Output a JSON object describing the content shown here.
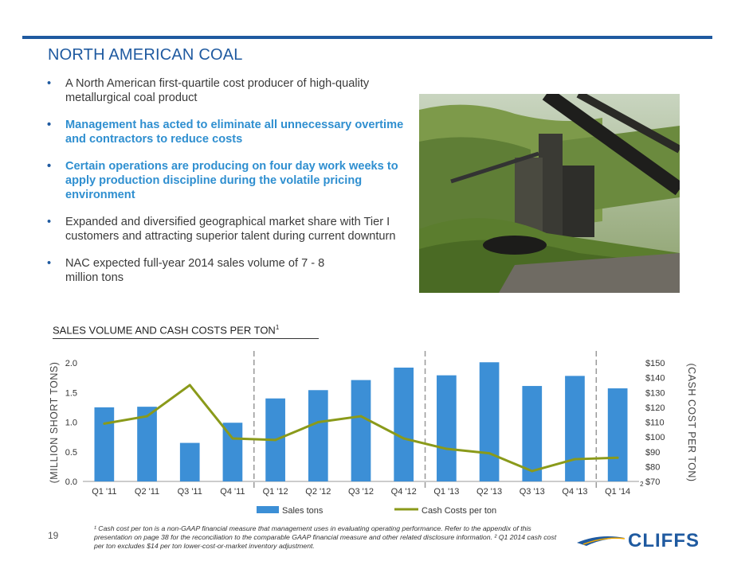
{
  "slide": {
    "title": "NORTH AMERICAN COAL",
    "page_number": "19",
    "bullets": [
      {
        "text": "A North American first-quartile cost producer of high-quality metallurgical coal product",
        "highlight": false
      },
      {
        "text": "Management has acted to eliminate all unnecessary overtime and contractors to reduce costs",
        "highlight": true
      },
      {
        "text": "Certain operations are producing on four day work weeks to apply production discipline during the volatile pricing environment",
        "highlight": true
      },
      {
        "text": "Expanded and diversified geographical market share with Tier I customers and attracting superior talent during current downturn",
        "highlight": false
      },
      {
        "text": "NAC expected full-year 2014 sales volume of 7 - 8 million tons",
        "highlight": false
      }
    ],
    "chart_heading": "SALES VOLUME AND CASH COSTS PER TON",
    "chart_heading_sup": "1",
    "footnote": "¹ Cash cost per ton is a non-GAAP financial measure that management uses in evaluating operating performance. Refer to the appendix of this presentation on page 38 for the reconciliation to the comparable GAAP financial measure and other related disclosure information. ² Q1 2014 cash cost per ton excludes $14 per ton lower-cost-or-market inventory adjustment.",
    "logo_text": "CLIFFS",
    "colors": {
      "brand_blue": "#1f5aa0",
      "highlight_blue": "#2f8fd0",
      "bar": "#3c8fd6",
      "line": "#8a9a1a"
    }
  },
  "chart_data": {
    "type": "bar",
    "categories": [
      "Q1 '11",
      "Q2 '11",
      "Q3 '11",
      "Q4 '11",
      "Q1 '12",
      "Q2 '12",
      "Q3 '12",
      "Q4 '12",
      "Q1 '13",
      "Q2 '13",
      "Q3 '13",
      "Q4 '13",
      "Q1 '14"
    ],
    "category_note": {
      "index": 12,
      "text": "2"
    },
    "series": [
      {
        "name": "Sales tons",
        "type": "bar",
        "axis": "left",
        "values": [
          1.25,
          1.26,
          0.65,
          0.99,
          1.4,
          1.54,
          1.71,
          1.92,
          1.79,
          2.01,
          1.61,
          1.78,
          1.57
        ]
      },
      {
        "name": "Cash Costs per ton",
        "type": "line",
        "axis": "right",
        "values": [
          109,
          114,
          135,
          99,
          98,
          110,
          114,
          99,
          92,
          89,
          77,
          85,
          86
        ]
      }
    ],
    "ylabel": "(MILLION SHORT TONS)",
    "ylabel_right": "(CASH COST PER TON)",
    "ylim": [
      0,
      2.0
    ],
    "yticks": [
      "0.0",
      "0.5",
      "1.0",
      "1.5",
      "2.0"
    ],
    "ylim_right": [
      70,
      150
    ],
    "yticks_right": [
      "$70",
      "$80",
      "$90",
      "$100",
      "$110",
      "$120",
      "$130",
      "$140",
      "$150"
    ],
    "year_separators_after": [
      3,
      7,
      11
    ],
    "legend_position": "bottom",
    "grid": false
  }
}
